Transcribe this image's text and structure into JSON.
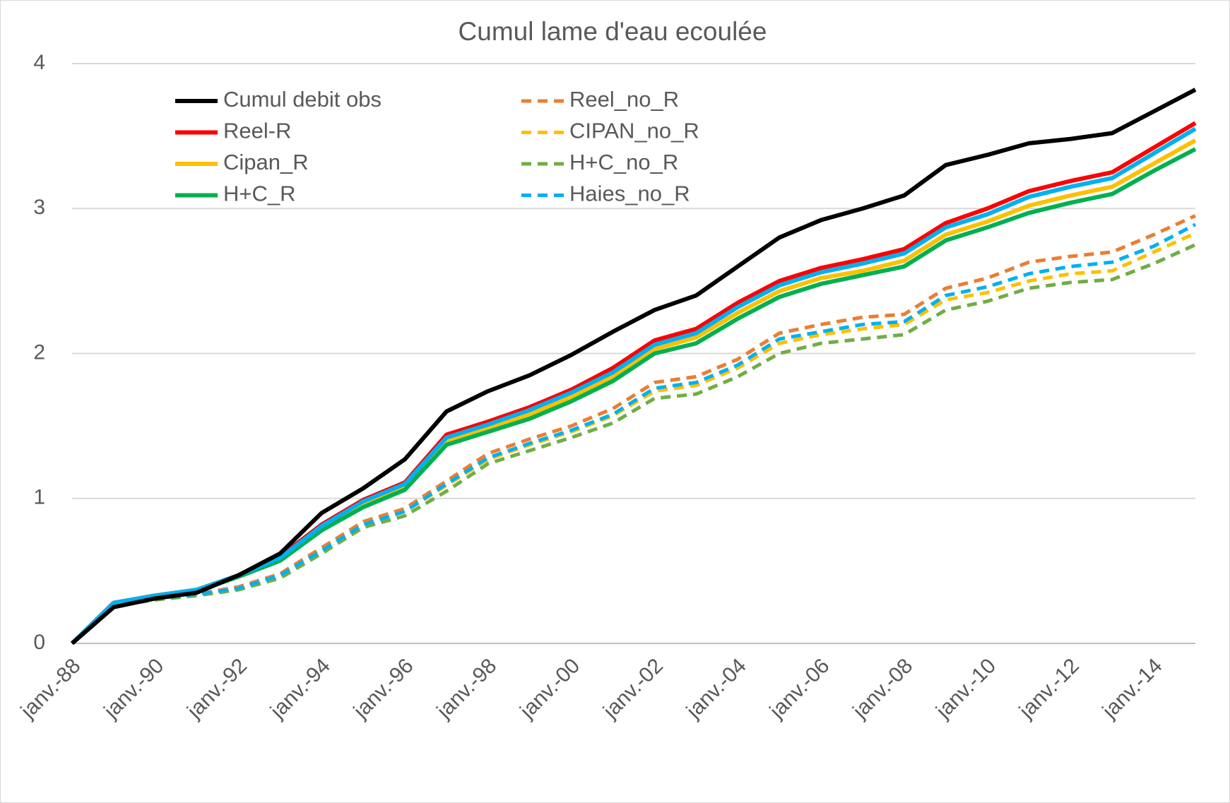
{
  "chart_data": {
    "type": "line",
    "title": "Cumul lame d'eau ecoulée",
    "x": [
      1988,
      1989,
      1990,
      1991,
      1992,
      1993,
      1994,
      1995,
      1996,
      1997,
      1998,
      1999,
      2000,
      2001,
      2002,
      2003,
      2004,
      2005,
      2006,
      2007,
      2008,
      2009,
      2010,
      2011,
      2012,
      2013,
      2014,
      2015
    ],
    "series": [
      {
        "name": "Cumul debit obs",
        "color": "#000000",
        "dashed": false,
        "values": [
          0,
          0.25,
          0.31,
          0.35,
          0.47,
          0.62,
          0.9,
          1.07,
          1.27,
          1.6,
          1.74,
          1.85,
          1.99,
          2.15,
          2.3,
          2.4,
          2.6,
          2.8,
          2.92,
          3.0,
          3.09,
          3.3,
          3.37,
          3.45,
          3.48,
          3.52,
          3.67,
          3.82
        ]
      },
      {
        "name": "Reel-R",
        "color": "#ff0000",
        "dashed": false,
        "values": [
          0,
          0.28,
          0.33,
          0.37,
          0.47,
          0.6,
          0.82,
          0.99,
          1.11,
          1.44,
          1.53,
          1.63,
          1.75,
          1.9,
          2.09,
          2.17,
          2.35,
          2.5,
          2.59,
          2.65,
          2.72,
          2.9,
          3.0,
          3.12,
          3.19,
          3.25,
          3.42,
          3.59
        ]
      },
      {
        "name": "Cipan_R",
        "color": "#ffc000",
        "dashed": false,
        "values": [
          0,
          0.28,
          0.33,
          0.37,
          0.47,
          0.58,
          0.8,
          0.96,
          1.08,
          1.4,
          1.49,
          1.58,
          1.7,
          1.84,
          2.03,
          2.11,
          2.28,
          2.43,
          2.52,
          2.57,
          2.64,
          2.82,
          2.91,
          3.02,
          3.09,
          3.15,
          3.31,
          3.47
        ]
      },
      {
        "name": "H+C_R",
        "color": "#00b050",
        "dashed": false,
        "values": [
          0,
          0.27,
          0.32,
          0.36,
          0.46,
          0.57,
          0.78,
          0.94,
          1.06,
          1.37,
          1.46,
          1.55,
          1.67,
          1.81,
          2.0,
          2.07,
          2.24,
          2.39,
          2.48,
          2.54,
          2.6,
          2.78,
          2.87,
          2.97,
          3.04,
          3.1,
          3.26,
          3.41
        ]
      },
      {
        "name": "Reel_no_R",
        "color": "#ed7d31",
        "dashed": true,
        "values": [
          0,
          0.27,
          0.31,
          0.34,
          0.39,
          0.48,
          0.66,
          0.84,
          0.93,
          1.12,
          1.31,
          1.41,
          1.5,
          1.62,
          1.8,
          1.84,
          1.96,
          2.14,
          2.2,
          2.25,
          2.27,
          2.45,
          2.52,
          2.63,
          2.67,
          2.7,
          2.82,
          2.95
        ]
      },
      {
        "name": "CIPAN_no_R",
        "color": "#ffc000",
        "dashed": true,
        "values": [
          0,
          0.27,
          0.31,
          0.34,
          0.38,
          0.47,
          0.64,
          0.82,
          0.91,
          1.09,
          1.27,
          1.37,
          1.46,
          1.57,
          1.74,
          1.78,
          1.9,
          2.07,
          2.13,
          2.17,
          2.2,
          2.37,
          2.42,
          2.5,
          2.55,
          2.57,
          2.7,
          2.83
        ]
      },
      {
        "name": "H+C_no_R",
        "color": "#70ad47",
        "dashed": true,
        "values": [
          0,
          0.26,
          0.3,
          0.33,
          0.37,
          0.45,
          0.62,
          0.8,
          0.88,
          1.05,
          1.24,
          1.33,
          1.42,
          1.52,
          1.69,
          1.72,
          1.84,
          2.0,
          2.07,
          2.1,
          2.13,
          2.3,
          2.36,
          2.45,
          2.49,
          2.51,
          2.62,
          2.75
        ]
      },
      {
        "name": "Haies_no_R",
        "color": "#00b0f0",
        "dashed": true,
        "values": [
          0,
          0.27,
          0.31,
          0.34,
          0.38,
          0.47,
          0.64,
          0.82,
          0.91,
          1.1,
          1.28,
          1.38,
          1.47,
          1.58,
          1.76,
          1.8,
          1.92,
          2.1,
          2.15,
          2.2,
          2.22,
          2.4,
          2.46,
          2.55,
          2.6,
          2.63,
          2.74,
          2.89
        ]
      },
      {
        "color": "#00b0f0",
        "dashed": false,
        "values": [
          0,
          0.28,
          0.33,
          0.37,
          0.47,
          0.59,
          0.81,
          0.98,
          1.1,
          1.42,
          1.51,
          1.61,
          1.73,
          1.87,
          2.06,
          2.14,
          2.32,
          2.47,
          2.56,
          2.62,
          2.69,
          2.87,
          2.96,
          3.08,
          3.15,
          3.21,
          3.38,
          3.55
        ]
      }
    ],
    "xlim": [
      1988,
      2015
    ],
    "xticks": [
      {
        "value": 1988,
        "label": "janv.-88"
      },
      {
        "value": 1990,
        "label": "janv.-90"
      },
      {
        "value": 1992,
        "label": "janv.-92"
      },
      {
        "value": 1994,
        "label": "janv.-94"
      },
      {
        "value": 1996,
        "label": "janv.-96"
      },
      {
        "value": 1998,
        "label": "janv.-98"
      },
      {
        "value": 2000,
        "label": "janv.-00"
      },
      {
        "value": 2002,
        "label": "janv.-02"
      },
      {
        "value": 2004,
        "label": "janv.-04"
      },
      {
        "value": 2006,
        "label": "janv.-06"
      },
      {
        "value": 2008,
        "label": "janv.-08"
      },
      {
        "value": 2010,
        "label": "janv.-10"
      },
      {
        "value": 2012,
        "label": "janv.-12"
      },
      {
        "value": 2014,
        "label": "janv.-14"
      }
    ],
    "ylim": [
      0,
      4
    ],
    "yticks": [
      0,
      1,
      2,
      3,
      4
    ],
    "grid": true,
    "legend": "upper left"
  }
}
